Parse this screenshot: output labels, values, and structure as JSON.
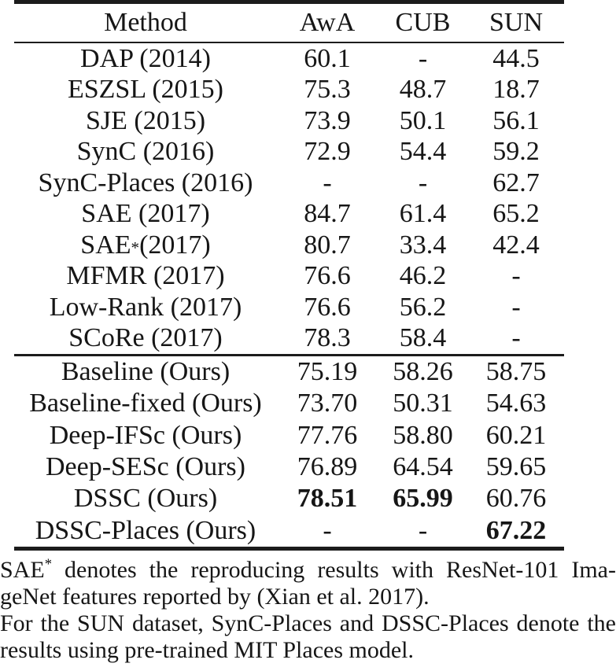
{
  "table": {
    "columns": [
      "Method",
      "AwA",
      "CUB",
      "SUN"
    ],
    "sections": [
      {
        "rows": [
          {
            "method": "DAP (2014)",
            "sup": "",
            "post": "",
            "values": [
              "60.1",
              "-",
              "44.5"
            ],
            "bold": [
              false,
              false,
              false
            ]
          },
          {
            "method": "ESZSL (2015)",
            "sup": "",
            "post": "",
            "values": [
              "75.3",
              "48.7",
              "18.7"
            ],
            "bold": [
              false,
              false,
              false
            ]
          },
          {
            "method": "SJE (2015)",
            "sup": "",
            "post": "",
            "values": [
              "73.9",
              "50.1",
              "56.1"
            ],
            "bold": [
              false,
              false,
              false
            ]
          },
          {
            "method": "SynC (2016)",
            "sup": "",
            "post": "",
            "values": [
              "72.9",
              "54.4",
              "59.2"
            ],
            "bold": [
              false,
              false,
              false
            ]
          },
          {
            "method": "SynC-Places (2016)",
            "sup": "",
            "post": "",
            "values": [
              "-",
              "-",
              "62.7"
            ],
            "bold": [
              false,
              false,
              false
            ]
          },
          {
            "method": "SAE (2017)",
            "sup": "",
            "post": "",
            "values": [
              "84.7",
              "61.4",
              "65.2"
            ],
            "bold": [
              false,
              false,
              false
            ]
          },
          {
            "method": "SAE",
            "sup": "*",
            "post": " (2017)",
            "values": [
              "80.7",
              "33.4",
              "42.4"
            ],
            "bold": [
              false,
              false,
              false
            ]
          },
          {
            "method": "MFMR (2017)",
            "sup": "",
            "post": "",
            "values": [
              "76.6",
              "46.2",
              "-"
            ],
            "bold": [
              false,
              false,
              false
            ]
          },
          {
            "method": "Low-Rank (2017)",
            "sup": "",
            "post": "",
            "values": [
              "76.6",
              "56.2",
              "-"
            ],
            "bold": [
              false,
              false,
              false
            ]
          },
          {
            "method": "SCoRe (2017)",
            "sup": "",
            "post": "",
            "values": [
              "78.3",
              "58.4",
              "-"
            ],
            "bold": [
              false,
              false,
              false
            ]
          }
        ]
      },
      {
        "rows": [
          {
            "method": "Baseline (Ours)",
            "sup": "",
            "post": "",
            "values": [
              "75.19",
              "58.26",
              "58.75"
            ],
            "bold": [
              false,
              false,
              false
            ]
          },
          {
            "method": "Baseline-fixed (Ours)",
            "sup": "",
            "post": "",
            "values": [
              "73.70",
              "50.31",
              "54.63"
            ],
            "bold": [
              false,
              false,
              false
            ]
          },
          {
            "method": "Deep-IFSc (Ours)",
            "sup": "",
            "post": "",
            "values": [
              "77.76",
              "58.80",
              "60.21"
            ],
            "bold": [
              false,
              false,
              false
            ]
          },
          {
            "method": "Deep-SESc (Ours)",
            "sup": "",
            "post": "",
            "values": [
              "76.89",
              "64.54",
              "59.65"
            ],
            "bold": [
              false,
              false,
              false
            ]
          },
          {
            "method": "DSSC (Ours)",
            "sup": "",
            "post": "",
            "values": [
              "78.51",
              "65.99",
              "60.76"
            ],
            "bold": [
              true,
              true,
              false
            ]
          },
          {
            "method": "DSSC-Places (Ours)",
            "sup": "",
            "post": "",
            "values": [
              "-",
              "-",
              "67.22"
            ],
            "bold": [
              false,
              false,
              true
            ]
          }
        ]
      }
    ]
  },
  "caption": {
    "lines": [
      {
        "pre": "SAE",
        "sup": "*",
        "text": " denotes the reproducing results with ResNet-101 Ima-"
      },
      {
        "pre": "",
        "sup": "",
        "text": "geNet features reported by (Xian et al. 2017)."
      },
      {
        "pre": "",
        "sup": "",
        "text": "For the SUN dataset, SynC-Places and DSSC-Places denote the"
      },
      {
        "pre": "",
        "sup": "",
        "text": "results using pre-trained MIT Places model."
      }
    ]
  },
  "colors": {
    "background": "#ffffff",
    "text": "#161616",
    "rule": "#1c1c1c"
  }
}
